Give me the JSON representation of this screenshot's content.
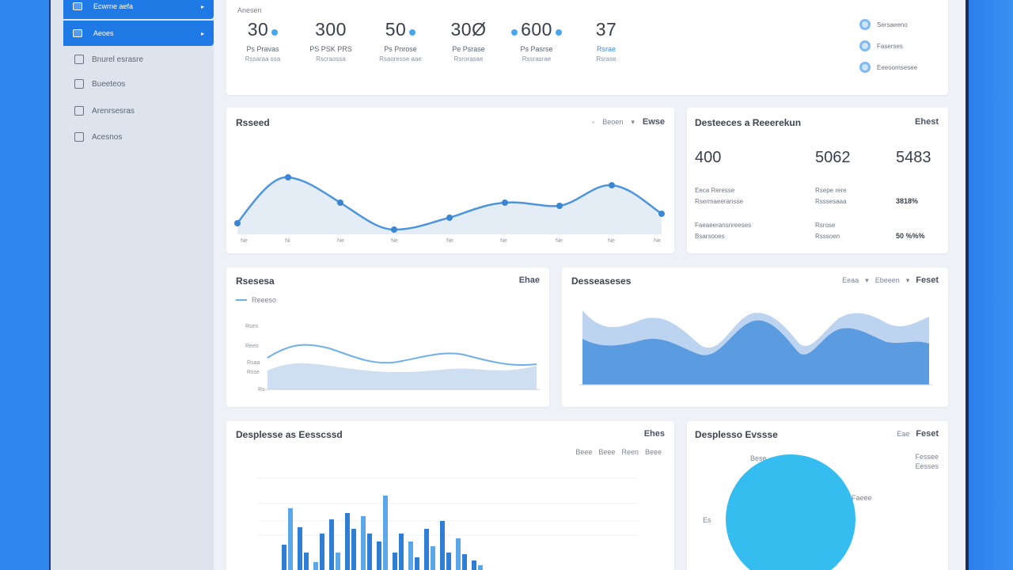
{
  "sidebar": {
    "items": [
      {
        "label": "Ecwrne aefa",
        "active": true,
        "icon": "shield-icon"
      },
      {
        "label": "Aeoes",
        "active": true,
        "icon": "folder-icon"
      },
      {
        "label": "Bnurel esrasre",
        "active": false,
        "icon": "database-icon"
      },
      {
        "label": "Bueeteos",
        "active": false,
        "icon": "database-icon"
      },
      {
        "label": "Arenrsesras",
        "active": false,
        "icon": "server-icon"
      },
      {
        "label": "Acesnos",
        "active": false,
        "icon": "document-icon"
      }
    ]
  },
  "kpi_card": {
    "header": "Anesen",
    "items": [
      {
        "value": "30",
        "line1": "Ps Pravas",
        "line2": "Rssaraa ssa"
      },
      {
        "value": "300",
        "line1": "PS PSK PRS",
        "line2": "Rscraossa"
      },
      {
        "value": "50",
        "line1": "Ps Pnrose",
        "line2": "Rsaoresse aae"
      },
      {
        "value": "30Ø",
        "line1": "Pe Psrase",
        "line2": "Rsrorasae"
      },
      {
        "value": "600",
        "line1": "Ps Pasrse",
        "line2": "Rssrasrae"
      },
      {
        "value": "37",
        "line1": "Rsrae",
        "line2": "Rsrase"
      }
    ],
    "legend": [
      "Sersaeeno",
      "Faserses",
      "Eeeoomsesee"
    ]
  },
  "line_card": {
    "title": "Rsseed",
    "controls": [
      "Beoen",
      "Ewse"
    ],
    "ticks": [
      "Ne",
      "Ni",
      "Ne",
      "Ne",
      "Ne",
      "Ne",
      "Ne",
      "Ne",
      "Ne"
    ]
  },
  "stats_card": {
    "title": "Desteeces a Reeerekun",
    "link": "Ehest",
    "stats": [
      "400",
      "5062",
      "5483"
    ],
    "rows": [
      {
        "a": "Eeca Reresse",
        "b": "Rsepe rere",
        "v": ""
      },
      {
        "a": "Rsermaeeransse",
        "b": "Rsssesaaa",
        "v": "3818%"
      },
      {
        "a": "Faeaeeransnreeses",
        "b": "Rsrose",
        "v": ""
      },
      {
        "a": "Bsarsooes",
        "b": "Rsssoen",
        "v": "50 %%%"
      }
    ]
  },
  "wave_card_left": {
    "title": "Rsesesa",
    "link": "Ehae",
    "legend": "Reeeso",
    "yticks": [
      "Rses",
      "Reeo",
      "Rsaa",
      "Rsse",
      "Rs"
    ]
  },
  "wave_card_right": {
    "title": "Desseaseses",
    "controls": [
      "Eeaa",
      "Ebeeen",
      "Feset"
    ]
  },
  "bar_card": {
    "title": "Desplesse as Eesscssd",
    "link": "Ehes",
    "legend": [
      "Beee",
      "Beee",
      "Reen",
      "Beee"
    ]
  },
  "pie_card": {
    "title": "Desplesso Evssse",
    "controls": [
      "Eae",
      "Feset"
    ],
    "labels": [
      "Bese",
      "Fessee",
      "Eesses",
      "Faeee",
      "Es"
    ]
  },
  "colors": {
    "accent": "#1f7ae6",
    "series_light": "#bfd7f1",
    "series_mid": "#5b9be0",
    "pie": "#35bdf0"
  }
}
